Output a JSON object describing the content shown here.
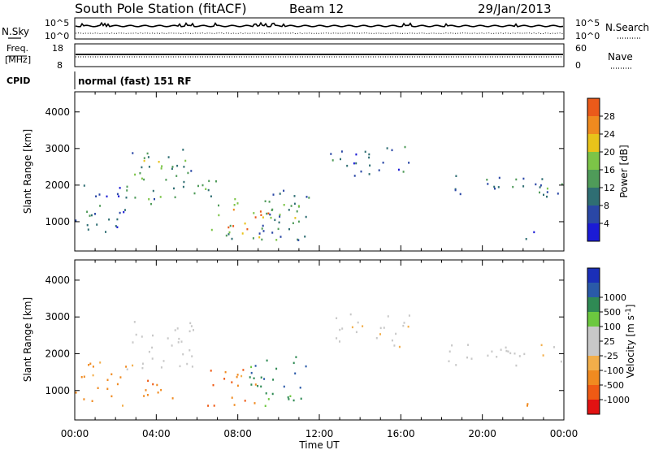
{
  "header": {
    "station": "South Pole Station (fitACF)",
    "beam": "Beam 12",
    "date": "29/Jan/2013"
  },
  "summary": {
    "nsky_label": "N.Sky",
    "nsky_ticks": [
      "10^5",
      "10^0"
    ],
    "nsearch_label": "N.Search",
    "freq_label": "Freq.",
    "freq_unit": "[MHz]",
    "freq_ticks": [
      "18",
      "8"
    ],
    "nave_label": "Nave",
    "nave_ticks": [
      "60",
      "0"
    ],
    "cpid_label": "CPID",
    "cpid_text": "normal (fast) 151 RF"
  },
  "colors": {
    "power_scale": [
      "#1b1bd6",
      "#2a47a6",
      "#2f6e73",
      "#4f9b59",
      "#7cc447",
      "#e8c31a",
      "#ef8a1f",
      "#ea5a1a",
      "#e01a0a"
    ],
    "velocity_scale": [
      "#e21212",
      "#ef5a14",
      "#f08a20",
      "#f2ae4a",
      "#c8c8c8",
      "#c8c8c8",
      "#6cc83f",
      "#2f8a54",
      "#2a5aa8",
      "#1b2fb8"
    ]
  },
  "chart_data": [
    {
      "type": "heatmap",
      "panel": "power",
      "ylabel": "Slant Range [km]",
      "yticks": [
        "1000",
        "2000",
        "3000",
        "4000"
      ],
      "ylim": [
        200,
        4550
      ],
      "xlim": [
        0,
        24
      ],
      "colorbar_label": "Power [dB]",
      "colorbar_ticks": [
        "4",
        "8",
        "12",
        "16",
        "20",
        "24",
        "28"
      ],
      "colorbar_range": [
        0,
        32
      ],
      "regions": [
        {
          "t": [
            0.0,
            2.5
          ],
          "r": [
            600,
            2200
          ],
          "value": 10
        },
        {
          "t": [
            2.5,
            6.0
          ],
          "r": [
            1500,
            3000
          ],
          "value": 14
        },
        {
          "t": [
            3.0,
            4.5
          ],
          "r": [
            2400,
            2900
          ],
          "value": 20
        },
        {
          "t": [
            5.5,
            7.0
          ],
          "r": [
            1700,
            2400
          ],
          "value": 16
        },
        {
          "t": [
            6.5,
            11.0
          ],
          "r": [
            500,
            1700
          ],
          "value": 18
        },
        {
          "t": [
            7.5,
            9.5
          ],
          "r": [
            800,
            1500
          ],
          "value": 28
        },
        {
          "t": [
            9.0,
            11.5
          ],
          "r": [
            500,
            2000
          ],
          "value": 12
        },
        {
          "t": [
            12.5,
            16.5
          ],
          "r": [
            2200,
            3100
          ],
          "value": 10
        },
        {
          "t": [
            18.5,
            24.0
          ],
          "r": [
            1700,
            2300
          ],
          "value": 12
        },
        {
          "t": [
            20.0,
            23.5
          ],
          "r": [
            1800,
            2000
          ],
          "value": 16
        },
        {
          "t": [
            21.0,
            22.5
          ],
          "r": [
            550,
            800
          ],
          "value": 8
        }
      ]
    },
    {
      "type": "heatmap",
      "panel": "velocity",
      "ylabel": "Slant Range [km]",
      "yticks": [
        "1000",
        "2000",
        "3000",
        "4000"
      ],
      "ylim": [
        200,
        4550
      ],
      "xlim": [
        0,
        24
      ],
      "xlabel": "Time UT",
      "xticks": [
        "00:00",
        "04:00",
        "08:00",
        "12:00",
        "16:00",
        "20:00",
        "00:00"
      ],
      "colorbar_label": "Velocity [m s^-1]",
      "colorbar_ticks": [
        "-1000",
        "-500",
        "-100",
        "-25",
        "25",
        "100",
        "500",
        "1000"
      ],
      "regions": [
        {
          "t": [
            0.0,
            2.5
          ],
          "r": [
            600,
            1800
          ],
          "value": -200
        },
        {
          "t": [
            2.5,
            6.0
          ],
          "r": [
            1600,
            3000
          ],
          "value": 0
        },
        {
          "t": [
            3.0,
            5.0
          ],
          "r": [
            700,
            1400
          ],
          "value": -300
        },
        {
          "t": [
            6.5,
            9.0
          ],
          "r": [
            600,
            1700
          ],
          "value": -400
        },
        {
          "t": [
            8.5,
            11.5
          ],
          "r": [
            500,
            2000
          ],
          "value": 200
        },
        {
          "t": [
            12.5,
            16.5
          ],
          "r": [
            2200,
            3100
          ],
          "value": 0
        },
        {
          "t": [
            18.0,
            24.0
          ],
          "r": [
            1700,
            2300
          ],
          "value": 0
        },
        {
          "t": [
            21.0,
            22.5
          ],
          "r": [
            550,
            800
          ],
          "value": -300
        }
      ]
    }
  ]
}
